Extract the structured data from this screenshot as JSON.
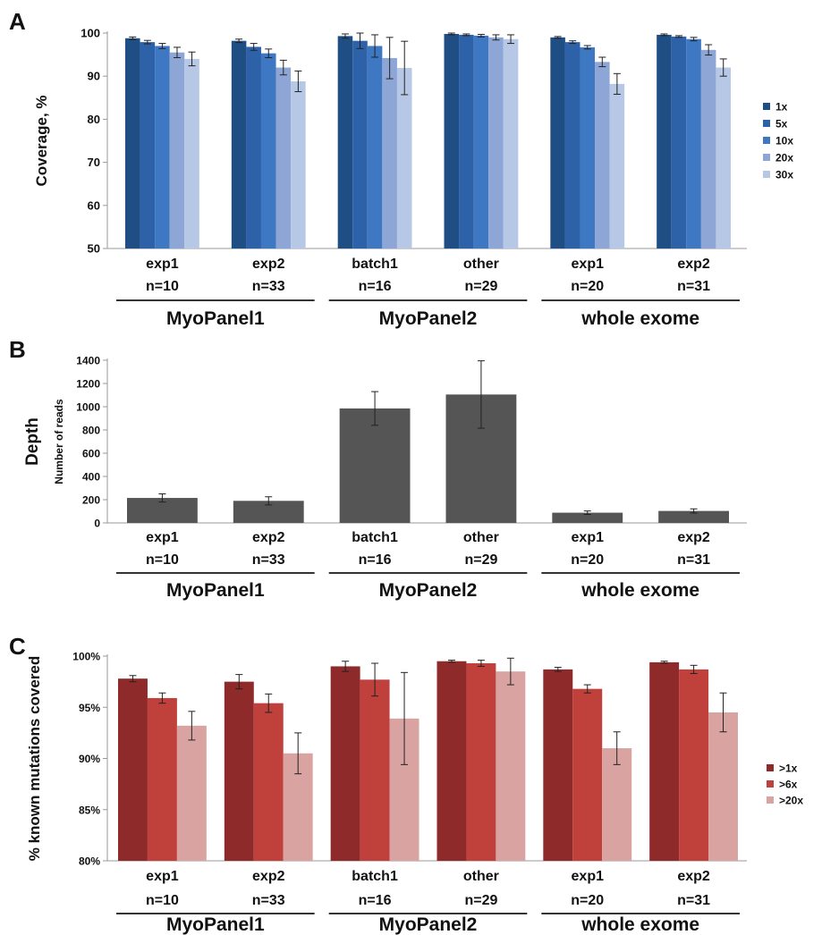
{
  "colors": {
    "coverage": [
      "#1f4e85",
      "#2e62a8",
      "#3e77c2",
      "#8ea6d6",
      "#b7c8e6"
    ],
    "depth": "#555555",
    "mutations": [
      "#8e2a2a",
      "#c0403c",
      "#d9a3a1"
    ],
    "axis": "#999999",
    "error_bar": "#222222"
  },
  "categories": [
    {
      "name": "exp1",
      "n": "n=10"
    },
    {
      "name": "exp2",
      "n": "n=33"
    },
    {
      "name": "batch1",
      "n": "n=16"
    },
    {
      "name": "other",
      "n": "n=29"
    },
    {
      "name": "exp1",
      "n": "n=20"
    },
    {
      "name": "exp2",
      "n": "n=31"
    }
  ],
  "groups": [
    "MyoPanel1",
    "MyoPanel2",
    "whole exome"
  ],
  "panels": {
    "A": {
      "letter": "A"
    },
    "B": {
      "letter": "B"
    },
    "C": {
      "letter": "C"
    }
  },
  "chart_data": [
    {
      "panel": "A",
      "type": "bar",
      "ylabel": "Coverage, %",
      "ylim": [
        50,
        100
      ],
      "yticks": [
        50,
        60,
        70,
        80,
        90,
        100
      ],
      "ytick_labels": [
        "50",
        "60",
        "70",
        "80",
        "90",
        "100"
      ],
      "legend_position": "right",
      "series": [
        {
          "name": "1x",
          "values": [
            98.8,
            98.2,
            99.3,
            99.8,
            99.0,
            99.6
          ],
          "errors": [
            0.3,
            0.4,
            0.5,
            0.2,
            0.2,
            0.2
          ]
        },
        {
          "name": "5x",
          "values": [
            97.9,
            96.8,
            98.2,
            99.6,
            97.9,
            99.2
          ],
          "errors": [
            0.4,
            0.8,
            1.8,
            0.2,
            0.3,
            0.2
          ]
        },
        {
          "name": "10x",
          "values": [
            97.0,
            95.3,
            97.0,
            99.4,
            96.7,
            98.6
          ],
          "errors": [
            0.6,
            1.0,
            2.6,
            0.3,
            0.4,
            0.4
          ]
        },
        {
          "name": "20x",
          "values": [
            95.5,
            92.0,
            94.2,
            99.0,
            93.3,
            96.1
          ],
          "errors": [
            1.2,
            1.7,
            4.8,
            0.6,
            1.1,
            1.2
          ]
        },
        {
          "name": "30x",
          "values": [
            94.0,
            88.8,
            91.9,
            98.6,
            88.2,
            92.0
          ],
          "errors": [
            1.6,
            2.4,
            6.2,
            1.0,
            2.4,
            2.0
          ]
        }
      ]
    },
    {
      "panel": "B",
      "type": "bar",
      "ylabel": "Depth",
      "ylabel_secondary": "Number of reads",
      "ylim": [
        0,
        1400
      ],
      "yticks": [
        0,
        200,
        400,
        600,
        800,
        1000,
        1200,
        1400
      ],
      "ytick_labels": [
        "0",
        "200",
        "400",
        "600",
        "800",
        "1000",
        "1200",
        "1400"
      ],
      "series": [
        {
          "name": "",
          "values": [
            215,
            190,
            985,
            1105,
            88,
            103
          ],
          "errors": [
            35,
            35,
            145,
            290,
            15,
            18
          ]
        }
      ]
    },
    {
      "panel": "C",
      "type": "bar",
      "ylabel": "% known mutations covered",
      "ylim": [
        80,
        100
      ],
      "yticks": [
        80,
        85,
        90,
        95,
        100
      ],
      "ytick_labels": [
        "80%",
        "85%",
        "90%",
        "95%",
        "100%"
      ],
      "legend_position": "right",
      "series": [
        {
          "name": ">1x",
          "values": [
            97.8,
            97.5,
            99.0,
            99.5,
            98.7,
            99.4
          ],
          "errors": [
            0.3,
            0.7,
            0.5,
            0.1,
            0.2,
            0.1
          ]
        },
        {
          "name": ">6x",
          "values": [
            95.9,
            95.4,
            97.7,
            99.3,
            96.8,
            98.7
          ],
          "errors": [
            0.5,
            0.9,
            1.6,
            0.3,
            0.4,
            0.4
          ]
        },
        {
          "name": ">20x",
          "values": [
            93.2,
            90.5,
            93.9,
            98.5,
            91.0,
            94.5
          ],
          "errors": [
            1.4,
            2.0,
            4.5,
            1.3,
            1.6,
            1.9
          ]
        }
      ]
    }
  ]
}
